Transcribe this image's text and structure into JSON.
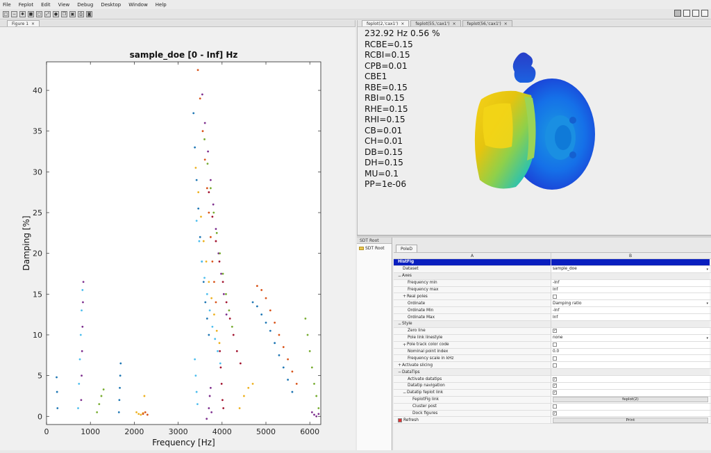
{
  "menu": [
    "File",
    "Feplot",
    "Edit",
    "View",
    "Debug",
    "Desktop",
    "Window",
    "Help"
  ],
  "left_tab": "Figure 1",
  "right_tabs": [
    "feplot(2,'cax1')",
    "feplot(55,'cax1')",
    "feplot(56,'cax1')"
  ],
  "pole_text": [
    "232.92 Hz 0.56 %",
    "RCBE=0.15",
    "RCBI=0.15",
    "CPB=0.01",
    "CBE1",
    "RBE=0.15",
    "RBI=0.15",
    "RHE=0.15",
    "RHI=0.15",
    "CB=0.01",
    "CH=0.01",
    "DB=0.15",
    "DH=0.15",
    "MU=0.1",
    "PP=1e-06"
  ],
  "tree": {
    "tab": "SDT Root",
    "node": "SDT Root"
  },
  "props": {
    "tab": "PoleD",
    "col_a": "A",
    "col_b": "B",
    "rows": [
      {
        "label": "HistFig",
        "indent": 0,
        "kind": "header",
        "value": ""
      },
      {
        "label": "Dataset",
        "indent": 1,
        "kind": "dropdown",
        "value": "sample_doe"
      },
      {
        "label": "Axes",
        "indent": 0,
        "kind": "group",
        "value": "",
        "pm": "−"
      },
      {
        "label": "Frequency min",
        "indent": 2,
        "kind": "text",
        "value": "-Inf"
      },
      {
        "label": "Frequency max",
        "indent": 2,
        "kind": "text",
        "value": "Inf"
      },
      {
        "label": "Real poles",
        "indent": 1,
        "kind": "check",
        "value": "",
        "pm": "+"
      },
      {
        "label": "Ordinate",
        "indent": 2,
        "kind": "dropdown",
        "value": "Damping ratio"
      },
      {
        "label": "Ordinate Min",
        "indent": 2,
        "kind": "text",
        "value": "-Inf"
      },
      {
        "label": "Ordinate Max",
        "indent": 2,
        "kind": "text",
        "value": "Inf"
      },
      {
        "label": "Style",
        "indent": 0,
        "kind": "group",
        "value": "",
        "pm": "−"
      },
      {
        "label": "Zero line",
        "indent": 2,
        "kind": "check",
        "value": "✓"
      },
      {
        "label": "Pole link linestyle",
        "indent": 2,
        "kind": "dropdown",
        "value": "none"
      },
      {
        "label": "Pole track color code",
        "indent": 1,
        "kind": "check",
        "value": "",
        "pm": "+"
      },
      {
        "label": "Nominal point index",
        "indent": 2,
        "kind": "text",
        "value": "0.0"
      },
      {
        "label": "Frequency scale in kHz",
        "indent": 2,
        "kind": "check",
        "value": ""
      },
      {
        "label": "Activate slicing",
        "indent": 0,
        "kind": "check",
        "value": "",
        "pm": "+"
      },
      {
        "label": "DataTips",
        "indent": 0,
        "kind": "group",
        "value": "",
        "pm": "−"
      },
      {
        "label": "Activate datatips",
        "indent": 2,
        "kind": "check",
        "value": "✓"
      },
      {
        "label": "Datatip navigation",
        "indent": 2,
        "kind": "check",
        "value": "✓"
      },
      {
        "label": "Datatip feplot link",
        "indent": 1,
        "kind": "check",
        "value": "✓",
        "pm": "−"
      },
      {
        "label": "FeplotFig link",
        "indent": 3,
        "kind": "button",
        "value": "feplot(2)"
      },
      {
        "label": "Cluster post",
        "indent": 3,
        "kind": "check",
        "value": ""
      },
      {
        "label": "Dock figures",
        "indent": 3,
        "kind": "check",
        "value": "✓"
      },
      {
        "label": "Refresh",
        "indent": 0,
        "kind": "button",
        "value": "Print"
      }
    ]
  },
  "colors": {
    "header_blue": "#0a1fbf"
  },
  "chart_data": {
    "type": "scatter",
    "title": "sample_doe [0 - Inf] Hz",
    "xlabel": "Frequency [Hz]",
    "ylabel": "Damping [%]",
    "xlim": [
      0,
      6250
    ],
    "ylim": [
      -1,
      43.5
    ],
    "xticks": [
      0,
      1000,
      2000,
      3000,
      4000,
      5000,
      6000
    ],
    "yticks": [
      0,
      5,
      10,
      15,
      20,
      25,
      30,
      35,
      40
    ],
    "grid": false,
    "series": [
      {
        "color": "#1f77b4",
        "points": [
          [
            3350,
            37.2
          ],
          [
            3380,
            33
          ],
          [
            3420,
            29
          ],
          [
            3460,
            25.5
          ],
          [
            3500,
            22
          ],
          [
            3540,
            19
          ],
          [
            3580,
            16.5
          ],
          [
            3620,
            14
          ],
          [
            3660,
            12
          ],
          [
            3700,
            10
          ]
        ]
      },
      {
        "color": "#d95319",
        "points": [
          [
            3450,
            42.5
          ],
          [
            3500,
            39
          ],
          [
            3560,
            35
          ],
          [
            3610,
            31.5
          ],
          [
            3660,
            28
          ],
          [
            3700,
            25
          ],
          [
            3740,
            22
          ],
          [
            3780,
            19
          ],
          [
            3820,
            16.5
          ],
          [
            3860,
            14
          ]
        ]
      },
      {
        "color": "#edb120",
        "points": [
          [
            3400,
            30.5
          ],
          [
            3460,
            27.5
          ],
          [
            3520,
            24.5
          ],
          [
            3580,
            21.5
          ],
          [
            3640,
            19
          ],
          [
            3700,
            16.5
          ],
          [
            3760,
            14.5
          ],
          [
            3820,
            12.5
          ],
          [
            3880,
            10.5
          ],
          [
            3940,
            9
          ]
        ]
      },
      {
        "color": "#7e2f8e",
        "points": [
          [
            3550,
            39.5
          ],
          [
            3610,
            36
          ],
          [
            3680,
            32.5
          ],
          [
            3740,
            29
          ],
          [
            3800,
            26
          ],
          [
            3860,
            23
          ],
          [
            3920,
            20
          ],
          [
            3980,
            17.5
          ],
          [
            4040,
            15
          ],
          [
            4100,
            12.5
          ]
        ]
      },
      {
        "color": "#77ac30",
        "points": [
          [
            3600,
            34
          ],
          [
            3670,
            31
          ],
          [
            3740,
            28
          ],
          [
            3810,
            25
          ],
          [
            3880,
            22.5
          ],
          [
            3950,
            20
          ],
          [
            4020,
            17.5
          ],
          [
            4090,
            15
          ],
          [
            4160,
            13
          ],
          [
            4230,
            11
          ]
        ]
      },
      {
        "color": "#4dbeee",
        "points": [
          [
            3420,
            24
          ],
          [
            3480,
            21.5
          ],
          [
            3540,
            19
          ],
          [
            3600,
            17
          ],
          [
            3660,
            15
          ],
          [
            3720,
            13
          ],
          [
            3780,
            11
          ],
          [
            3840,
            9.5
          ],
          [
            3900,
            8
          ],
          [
            3960,
            6.5
          ]
        ]
      },
      {
        "color": "#a2142f",
        "points": [
          [
            3700,
            27.5
          ],
          [
            3780,
            24.5
          ],
          [
            3860,
            21.5
          ],
          [
            3940,
            19
          ],
          [
            4020,
            16.5
          ],
          [
            4100,
            14
          ],
          [
            4180,
            12
          ],
          [
            4260,
            10
          ],
          [
            4340,
            8
          ],
          [
            4420,
            6.5
          ]
        ]
      },
      {
        "color": "#d95319",
        "points": [
          [
            4800,
            16
          ],
          [
            4900,
            15.5
          ],
          [
            5000,
            14.5
          ],
          [
            5100,
            13
          ],
          [
            5200,
            11.5
          ],
          [
            5300,
            10
          ],
          [
            5400,
            8.5
          ],
          [
            5500,
            7
          ],
          [
            5600,
            5.5
          ],
          [
            5700,
            4
          ]
        ]
      },
      {
        "color": "#1f77b4",
        "points": [
          [
            4700,
            14
          ],
          [
            4800,
            13.5
          ],
          [
            4900,
            12.5
          ],
          [
            5000,
            11.5
          ],
          [
            5100,
            10.5
          ],
          [
            5200,
            9
          ],
          [
            5300,
            7.5
          ],
          [
            5400,
            6
          ],
          [
            5500,
            4.5
          ],
          [
            5600,
            3
          ]
        ]
      },
      {
        "color": "#77ac30",
        "points": [
          [
            5900,
            12
          ],
          [
            5950,
            10
          ],
          [
            6000,
            8
          ],
          [
            6050,
            6
          ],
          [
            6100,
            4
          ],
          [
            6150,
            2.5
          ],
          [
            6200,
            1
          ]
        ]
      },
      {
        "color": "#4dbeee",
        "points": [
          [
            720,
            1
          ],
          [
            740,
            4
          ],
          [
            760,
            7
          ],
          [
            780,
            10
          ],
          [
            800,
            13
          ],
          [
            820,
            15.5
          ]
        ]
      },
      {
        "color": "#7e2f8e",
        "points": [
          [
            790,
            2
          ],
          [
            800,
            5
          ],
          [
            810,
            8
          ],
          [
            820,
            11
          ],
          [
            830,
            14
          ],
          [
            840,
            16.5
          ]
        ]
      },
      {
        "color": "#1f77b4",
        "points": [
          [
            1650,
            0.5
          ],
          [
            1660,
            2
          ],
          [
            1670,
            3.5
          ],
          [
            1680,
            5
          ],
          [
            1690,
            6.5
          ]
        ]
      },
      {
        "color": "#77ac30",
        "points": [
          [
            1150,
            0.5
          ],
          [
            1200,
            1.5
          ],
          [
            1250,
            2.5
          ],
          [
            1300,
            3.3
          ]
        ]
      },
      {
        "color": "#edb120",
        "points": [
          [
            2050,
            0.5
          ],
          [
            2100,
            0.3
          ],
          [
            2150,
            0.2
          ],
          [
            2200,
            0.4
          ],
          [
            2230,
            2.5
          ]
        ]
      },
      {
        "color": "#7e2f8e",
        "points": [
          [
            3650,
            -0.3
          ],
          [
            3700,
            1
          ],
          [
            3720,
            2.5
          ],
          [
            3740,
            3.5
          ],
          [
            3760,
            0.5
          ]
        ]
      },
      {
        "color": "#d95319",
        "points": [
          [
            2200,
            0.3
          ],
          [
            2250,
            0.5
          ],
          [
            2300,
            0.2
          ]
        ]
      },
      {
        "color": "#1f77b4",
        "points": [
          [
            230,
            4.8
          ],
          [
            240,
            3
          ],
          [
            250,
            1
          ]
        ]
      },
      {
        "color": "#a2142f",
        "points": [
          [
            3950,
            8
          ],
          [
            3970,
            6
          ],
          [
            3990,
            4
          ],
          [
            4010,
            2
          ],
          [
            4030,
            1
          ]
        ]
      },
      {
        "color": "#4dbeee",
        "points": [
          [
            3380,
            7
          ],
          [
            3400,
            5
          ],
          [
            3420,
            3
          ],
          [
            3440,
            1.5
          ]
        ]
      },
      {
        "color": "#edb120",
        "points": [
          [
            4400,
            1
          ],
          [
            4500,
            2.5
          ],
          [
            4600,
            3.5
          ],
          [
            4700,
            4
          ]
        ]
      },
      {
        "color": "#7e2f8e",
        "points": [
          [
            6050,
            0.5
          ],
          [
            6100,
            0.2
          ],
          [
            6150,
            0
          ],
          [
            6200,
            0.3
          ]
        ]
      }
    ]
  }
}
